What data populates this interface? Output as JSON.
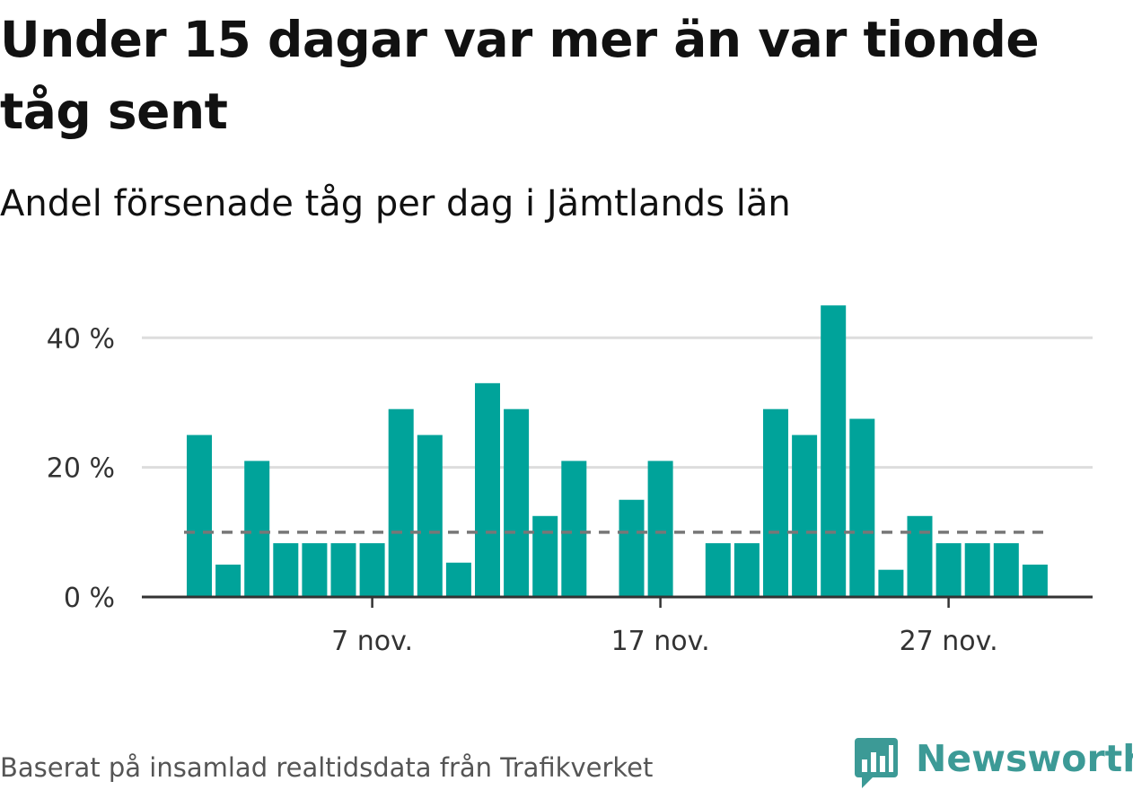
{
  "title": "Under 15 dagar var mer än var tionde tåg sent",
  "subtitle": "Andel försenade tåg per dag i Jämtlands län",
  "footer": "Baserat på insamlad realtidsdata från Trafikverket",
  "brand": {
    "name": "Newsworthy",
    "color": "#3c9a96",
    "icon": "newsworthy-chat-bars-icon"
  },
  "colors": {
    "bar": "#00a39a",
    "reference_line": "#777777",
    "grid": "#dddddd",
    "axis": "#333333"
  },
  "chart_data": {
    "type": "bar",
    "x": [
      "2024-11-01",
      "2024-11-02",
      "2024-11-03",
      "2024-11-04",
      "2024-11-05",
      "2024-11-06",
      "2024-11-07",
      "2024-11-08",
      "2024-11-09",
      "2024-11-10",
      "2024-11-11",
      "2024-11-12",
      "2024-11-13",
      "2024-11-14",
      "2024-11-15",
      "2024-11-16",
      "2024-11-17",
      "2024-11-18",
      "2024-11-19",
      "2024-11-20",
      "2024-11-21",
      "2024-11-22",
      "2024-11-23",
      "2024-11-24",
      "2024-11-25",
      "2024-11-26",
      "2024-11-27",
      "2024-11-28",
      "2024-11-29",
      "2024-11-30"
    ],
    "values": [
      25,
      5,
      21,
      8.3,
      8.3,
      8.3,
      8.3,
      29,
      25,
      5.3,
      33,
      29,
      12.5,
      21,
      0,
      15,
      21,
      0,
      8.3,
      8.3,
      29,
      25,
      45,
      27.5,
      4.2,
      12.5,
      8.3,
      8.3,
      8.3,
      5
    ],
    "y_ticks": [
      {
        "value": 0,
        "label": "0 %"
      },
      {
        "value": 20,
        "label": "20 %"
      },
      {
        "value": 40,
        "label": "40 %"
      }
    ],
    "x_ticks": [
      {
        "value": "2024-11-07",
        "label": "7 nov."
      },
      {
        "value": "2024-11-17",
        "label": "17 nov."
      },
      {
        "value": "2024-11-27",
        "label": "27 nov."
      }
    ],
    "reference_line": {
      "value": 10,
      "style": "dashed"
    },
    "ylim": [
      0,
      46
    ],
    "grid": true,
    "legend": "none"
  }
}
